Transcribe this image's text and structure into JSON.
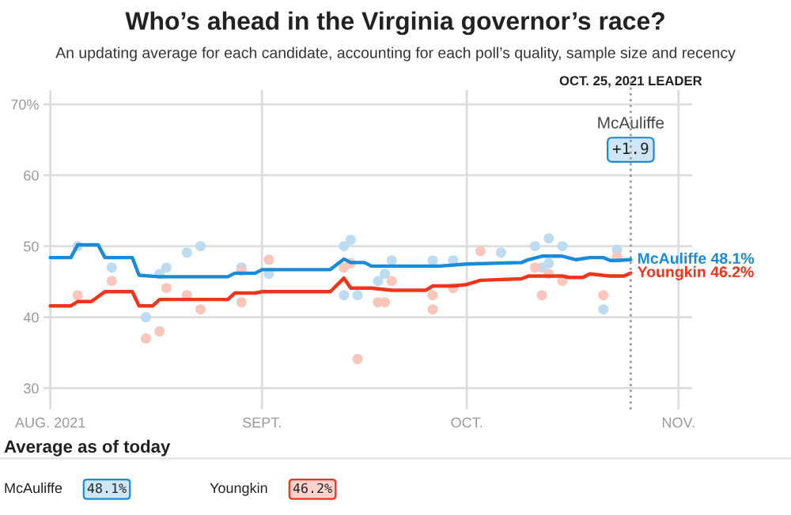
{
  "chart_data": {
    "type": "line",
    "title": "Who’s ahead in the Virginia governor’s race?",
    "subtitle": "An updating average for each candidate, accounting for each poll’s quality, sample size and recency",
    "xlim": [
      "2021-07-31",
      "2021-11-03"
    ],
    "xticks": [
      {
        "value": "2021-08-01",
        "label": "AUG. 2021"
      },
      {
        "value": "2021-09-01",
        "label": "SEPT."
      },
      {
        "value": "2021-10-01",
        "label": "OCT."
      },
      {
        "value": "2021-11-01",
        "label": "NOV."
      }
    ],
    "ylim": [
      27,
      72
    ],
    "yticks": [
      30,
      40,
      50,
      60,
      {
        "value": 70,
        "label": "70%"
      }
    ],
    "grid": true,
    "legend": "bottom",
    "series": [
      {
        "type": "scatter",
        "marker": "circle",
        "color": "#bddcf2",
        "x": [
          "2021-08-05",
          "2021-08-10",
          "2021-08-15",
          "2021-08-17",
          "2021-08-18",
          "2021-08-21",
          "2021-08-23",
          "2021-08-29",
          "2021-09-02",
          "2021-09-13",
          "2021-09-14",
          "2021-09-15",
          "2021-09-13",
          "2021-09-18",
          "2021-09-19",
          "2021-09-20",
          "2021-09-26",
          "2021-09-29",
          "2021-10-06",
          "2021-10-11",
          "2021-10-12",
          "2021-10-13",
          "2021-10-13",
          "2021-10-15",
          "2021-10-21",
          "2021-10-23"
        ],
        "values": [
          50.0,
          47.0,
          40.0,
          46.1,
          47.0,
          49.1,
          50.0,
          47.0,
          46.1,
          50.0,
          50.9,
          43.1,
          43.1,
          45.1,
          46.1,
          48.0,
          48.0,
          48.0,
          49.1,
          50.0,
          47.0,
          51.1,
          47.6,
          50.0,
          41.1,
          49.5
        ]
      },
      {
        "type": "scatter",
        "marker": "circle",
        "color": "#f9c6bc",
        "x": [
          "2021-08-05",
          "2021-08-10",
          "2021-08-15",
          "2021-08-17",
          "2021-08-18",
          "2021-08-21",
          "2021-08-23",
          "2021-08-29",
          "2021-08-29",
          "2021-09-02",
          "2021-09-13",
          "2021-09-14",
          "2021-09-15",
          "2021-09-18",
          "2021-09-19",
          "2021-09-20",
          "2021-09-26",
          "2021-09-26",
          "2021-09-29",
          "2021-10-03",
          "2021-10-11",
          "2021-10-12",
          "2021-10-13",
          "2021-10-15",
          "2021-10-21",
          "2021-10-23"
        ],
        "values": [
          43.1,
          45.1,
          37.0,
          38.0,
          44.1,
          43.1,
          41.1,
          42.1,
          46.5,
          48.1,
          47.0,
          47.6,
          34.1,
          42.1,
          42.1,
          45.1,
          43.1,
          41.1,
          44.1,
          49.3,
          47.0,
          43.1,
          46.1,
          45.1,
          43.1,
          48.5
        ]
      },
      {
        "name": "McAuliffe",
        "color": "#1a8bd8",
        "x": [
          "2021-08-01",
          "2021-08-04",
          "2021-08-05",
          "2021-08-08",
          "2021-08-09",
          "2021-08-13",
          "2021-08-14",
          "2021-08-17",
          "2021-08-27",
          "2021-08-28",
          "2021-08-31",
          "2021-09-01",
          "2021-09-11",
          "2021-09-13",
          "2021-09-14",
          "2021-09-16",
          "2021-09-17",
          "2021-09-27",
          "2021-10-01",
          "2021-10-09",
          "2021-10-10",
          "2021-10-12",
          "2021-10-15",
          "2021-10-17",
          "2021-10-19",
          "2021-10-21",
          "2021-10-22",
          "2021-10-23",
          "2021-10-25"
        ],
        "values": [
          48.4,
          48.4,
          50.2,
          50.2,
          48.4,
          48.4,
          45.9,
          45.7,
          45.7,
          46.2,
          46.2,
          46.7,
          46.7,
          48.2,
          47.7,
          47.7,
          47.2,
          47.2,
          47.5,
          47.7,
          48.1,
          48.6,
          48.6,
          48.1,
          48.4,
          48.4,
          48.0,
          48.0,
          48.1
        ]
      },
      {
        "name": "Youngkin",
        "color": "#f5321b",
        "x": [
          "2021-08-01",
          "2021-08-04",
          "2021-08-05",
          "2021-08-07",
          "2021-08-09",
          "2021-08-13",
          "2021-08-14",
          "2021-08-16",
          "2021-08-17",
          "2021-08-27",
          "2021-08-28",
          "2021-08-31",
          "2021-09-01",
          "2021-09-11",
          "2021-09-13",
          "2021-09-14",
          "2021-09-17",
          "2021-09-20",
          "2021-09-25",
          "2021-09-26",
          "2021-09-29",
          "2021-10-01",
          "2021-10-03",
          "2021-10-09",
          "2021-10-10",
          "2021-10-15",
          "2021-10-16",
          "2021-10-18",
          "2021-10-19",
          "2021-10-22",
          "2021-10-24",
          "2021-10-25"
        ],
        "values": [
          41.6,
          41.6,
          42.2,
          42.2,
          43.6,
          43.6,
          41.6,
          41.6,
          42.5,
          42.5,
          43.4,
          43.4,
          43.6,
          43.6,
          45.5,
          44.1,
          44.1,
          43.8,
          43.8,
          44.4,
          44.4,
          44.6,
          45.2,
          45.4,
          45.8,
          45.8,
          45.6,
          45.6,
          46.1,
          45.8,
          45.8,
          46.2
        ]
      }
    ],
    "ref_lines": [
      {
        "axis": "x",
        "value": "2021-10-25",
        "label": "OCT. 25, 2021 LEADER",
        "color": "#999999",
        "line_style": "dotted"
      }
    ],
    "annotations": [
      "McAuliffe",
      "+1.9",
      {
        "text": "McAuliffe 48.1%",
        "x": "2021-10-25",
        "y": 48.1
      },
      {
        "text": "Youngkin 46.2%",
        "x": "2021-10-25",
        "y": 46.2
      },
      "Average as of today",
      "48.1%",
      "46.2%"
    ]
  }
}
